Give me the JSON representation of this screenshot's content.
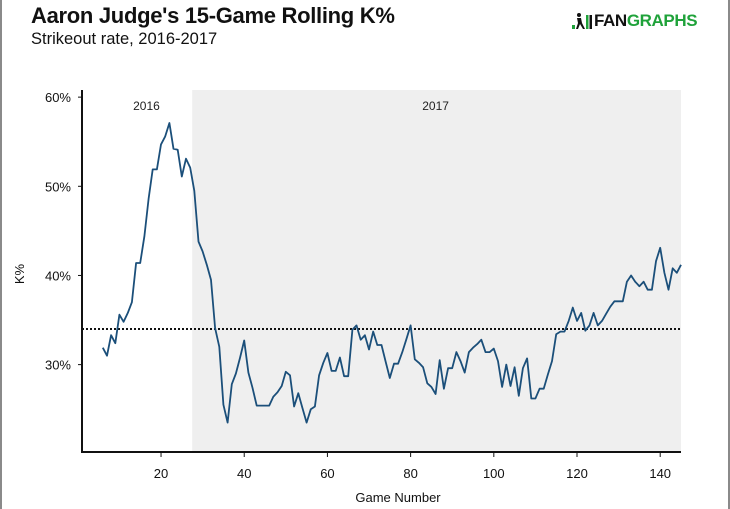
{
  "header": {
    "title": "Aaron Judge's 15-Game Rolling K%",
    "subtitle": "Strikeout rate, 2016-2017"
  },
  "logo": {
    "icon": "fangraphs-batter-icon",
    "text_dark": "FAN",
    "text_green": "GRAPHS",
    "brand_color": "#1fa23a"
  },
  "colors": {
    "line": "#1b4f7a",
    "shade_2017": "#efefef",
    "reference_line": "#111111"
  },
  "chart_data": {
    "type": "line",
    "title": "Aaron Judge's 15-Game Rolling K%",
    "subtitle": "Strikeout rate, 2016-2017",
    "xlabel": "Game Number",
    "ylabel": "K%",
    "xlim": [
      1,
      145
    ],
    "ylim": [
      20.2,
      60.8
    ],
    "x_ticks": [
      20,
      40,
      60,
      80,
      100,
      120,
      140
    ],
    "x_tick_labels": [
      "20",
      "40",
      "60",
      "80",
      "100",
      "120",
      "140"
    ],
    "y_ticks": [
      30,
      40,
      50,
      60
    ],
    "y_tick_labels": [
      "30%",
      "40%",
      "50%",
      "60%"
    ],
    "grid": false,
    "legend": "none",
    "reference_line": {
      "y": 34.0,
      "style": "dotted",
      "label": ""
    },
    "regions": [
      {
        "label": "2016",
        "x_start": 1,
        "x_end": 27.5,
        "label_x": 16.5,
        "shaded": false
      },
      {
        "label": "2017",
        "x_start": 27.5,
        "x_end": 145,
        "label_x": 86,
        "shaded": true
      }
    ],
    "series": [
      {
        "name": "15-Game Rolling K%",
        "x": [
          6,
          7,
          8,
          9,
          10,
          11,
          12,
          13,
          14,
          15,
          16,
          17,
          18,
          19,
          20,
          21,
          22,
          23,
          24,
          25,
          26,
          27,
          28,
          29,
          30,
          31,
          32,
          33,
          34,
          35,
          36,
          37,
          38,
          39,
          40,
          41,
          42,
          43,
          44,
          45,
          46,
          47,
          48,
          49,
          50,
          51,
          52,
          53,
          54,
          55,
          56,
          57,
          58,
          59,
          60,
          61,
          62,
          63,
          64,
          65,
          66,
          67,
          68,
          69,
          70,
          71,
          72,
          73,
          74,
          75,
          76,
          77,
          78,
          79,
          80,
          81,
          82,
          83,
          84,
          85,
          86,
          87,
          88,
          89,
          90,
          91,
          92,
          93,
          94,
          95,
          96,
          97,
          98,
          99,
          100,
          101,
          102,
          103,
          104,
          105,
          106,
          107,
          108,
          109,
          110,
          111,
          112,
          113,
          114,
          115,
          116,
          117,
          118,
          119,
          120,
          121,
          122,
          123,
          124,
          125,
          126,
          127,
          128,
          129,
          130,
          131,
          132,
          133,
          134,
          135,
          136,
          137,
          138,
          139,
          140,
          141,
          142,
          143,
          144,
          145
        ],
        "values": [
          31.9,
          31.0,
          33.3,
          32.4,
          35.6,
          34.8,
          35.8,
          37.0,
          41.4,
          41.4,
          44.4,
          48.6,
          51.9,
          51.9,
          54.7,
          55.6,
          57.1,
          54.2,
          54.1,
          51.1,
          53.1,
          52.1,
          49.5,
          43.8,
          42.7,
          41.2,
          39.5,
          34.1,
          32.0,
          25.5,
          23.5,
          27.8,
          29.0,
          30.8,
          32.7,
          29.1,
          27.4,
          25.4,
          25.4,
          25.4,
          25.4,
          26.4,
          26.9,
          27.6,
          29.2,
          28.8,
          25.3,
          26.8,
          25.1,
          23.5,
          25.0,
          25.3,
          28.8,
          30.2,
          31.3,
          29.3,
          29.3,
          30.8,
          28.7,
          28.7,
          33.9,
          34.4,
          32.8,
          33.3,
          31.7,
          33.7,
          32.2,
          32.2,
          30.3,
          28.5,
          30.1,
          30.1,
          31.4,
          32.9,
          34.4,
          30.6,
          30.2,
          29.7,
          27.9,
          27.5,
          26.7,
          30.5,
          27.3,
          29.6,
          29.6,
          31.4,
          30.4,
          29.1,
          31.4,
          31.9,
          32.3,
          32.8,
          31.4,
          31.4,
          31.8,
          30.4,
          27.5,
          30.0,
          27.6,
          29.7,
          26.5,
          29.6,
          30.7,
          26.2,
          26.2,
          27.3,
          27.3,
          28.9,
          30.4,
          33.4,
          33.7,
          33.7,
          34.9,
          36.4,
          34.9,
          35.8,
          33.8,
          34.4,
          35.8,
          34.4,
          34.9,
          35.7,
          36.5,
          37.1,
          37.1,
          37.1,
          39.3,
          40.0,
          39.3,
          38.8,
          39.3,
          38.4,
          38.4,
          41.6,
          43.1,
          40.3,
          38.4,
          40.8,
          40.3,
          41.2
        ]
      }
    ]
  }
}
